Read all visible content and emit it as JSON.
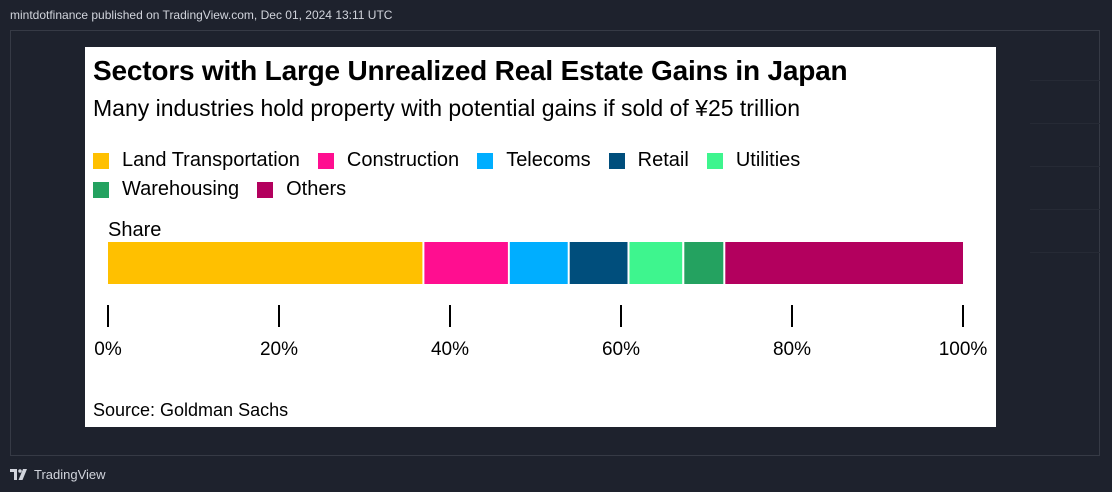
{
  "header": {
    "published_text": "mintdotfinance published on TradingView.com, Dec 01, 2024 13:11 UTC"
  },
  "footer": {
    "brand": "TradingView"
  },
  "chart_data": {
    "type": "bar",
    "orientation": "horizontal-stacked",
    "title": "Sectors with Large Unrealized Real Estate Gains in Japan",
    "subtitle": "Many industries hold property with potential gains if sold of ¥25 trillion",
    "categories": [
      "Share"
    ],
    "series": [
      {
        "name": "Land Transportation",
        "values": [
          37
        ],
        "color": "#ffc000"
      },
      {
        "name": "Construction",
        "values": [
          10
        ],
        "color": "#ff0e90"
      },
      {
        "name": "Telecoms",
        "values": [
          7
        ],
        "color": "#00aeff"
      },
      {
        "name": "Retail",
        "values": [
          7
        ],
        "color": "#004e7c"
      },
      {
        "name": "Utilities",
        "values": [
          6.4
        ],
        "color": "#3ef58e"
      },
      {
        "name": "Warehousing",
        "values": [
          4.8
        ],
        "color": "#24a260"
      },
      {
        "name": "Others",
        "values": [
          27.8
        ],
        "color": "#b3005e"
      }
    ],
    "xlim": [
      0,
      100
    ],
    "xticks": [
      "0%",
      "20%",
      "40%",
      "60%",
      "80%",
      "100%"
    ],
    "legend_position": "top",
    "grid": false,
    "source": "Source: Goldman Sachs"
  }
}
